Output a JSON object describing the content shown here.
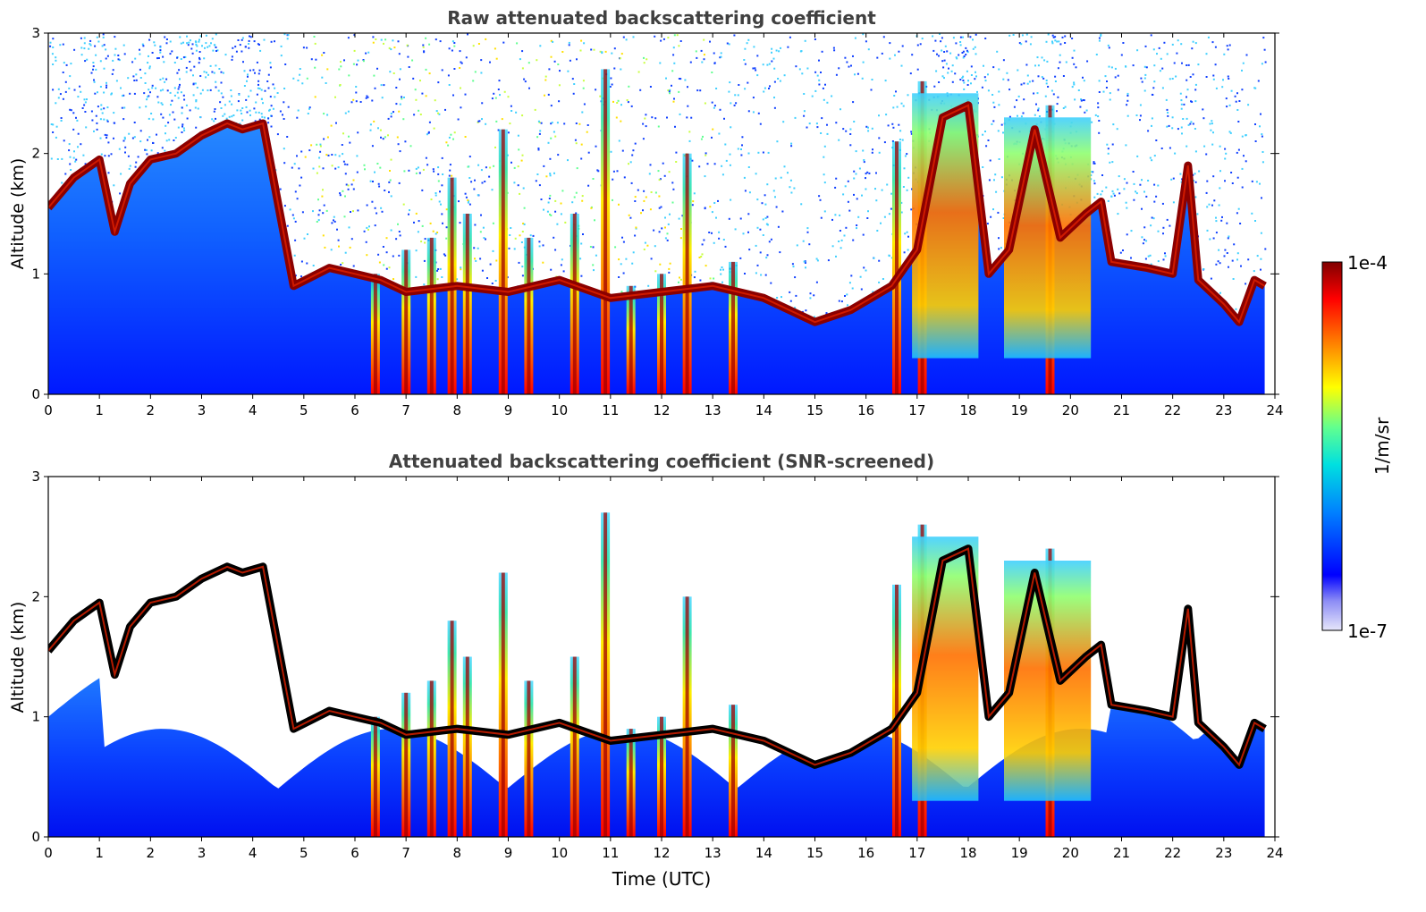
{
  "chart_data": [
    {
      "type": "heatmap",
      "title": "Raw attenuated backscattering coefficient",
      "xlabel": "",
      "ylabel": "Altitude (km)",
      "xlim": [
        0,
        24
      ],
      "ylim": [
        0,
        3
      ],
      "x_ticks": [
        "0",
        "1",
        "2",
        "3",
        "4",
        "5",
        "6",
        "7",
        "8",
        "9",
        "10",
        "11",
        "12",
        "13",
        "14",
        "15",
        "16",
        "17",
        "18",
        "19",
        "20",
        "21",
        "22",
        "23",
        "24"
      ],
      "y_ticks": [
        "0",
        "1",
        "2",
        "3"
      ],
      "grid": false,
      "data_coverage_hours": [
        0,
        23.8
      ],
      "noise": "speckle above aerosol layer; denser 5-13 UTC",
      "boundary_layer": [
        {
          "t": 0.0,
          "h": 1.55
        },
        {
          "t": 0.5,
          "h": 1.8
        },
        {
          "t": 1.0,
          "h": 1.95
        },
        {
          "t": 1.3,
          "h": 1.35
        },
        {
          "t": 1.6,
          "h": 1.75
        },
        {
          "t": 2.0,
          "h": 1.95
        },
        {
          "t": 2.5,
          "h": 2.0
        },
        {
          "t": 3.0,
          "h": 2.15
        },
        {
          "t": 3.5,
          "h": 2.25
        },
        {
          "t": 3.8,
          "h": 2.2
        },
        {
          "t": 4.2,
          "h": 2.25
        },
        {
          "t": 4.8,
          "h": 0.9
        },
        {
          "t": 5.5,
          "h": 1.05
        },
        {
          "t": 6.0,
          "h": 1.0
        },
        {
          "t": 6.5,
          "h": 0.95
        },
        {
          "t": 7.0,
          "h": 0.85
        },
        {
          "t": 8.0,
          "h": 0.9
        },
        {
          "t": 9.0,
          "h": 0.85
        },
        {
          "t": 10.0,
          "h": 0.95
        },
        {
          "t": 11.0,
          "h": 0.8
        },
        {
          "t": 12.0,
          "h": 0.85
        },
        {
          "t": 13.0,
          "h": 0.9
        },
        {
          "t": 14.0,
          "h": 0.8
        },
        {
          "t": 15.0,
          "h": 0.6
        },
        {
          "t": 15.7,
          "h": 0.7
        },
        {
          "t": 16.5,
          "h": 0.9
        },
        {
          "t": 17.0,
          "h": 1.2
        },
        {
          "t": 17.5,
          "h": 2.3
        },
        {
          "t": 18.0,
          "h": 2.4
        },
        {
          "t": 18.4,
          "h": 1.0
        },
        {
          "t": 18.8,
          "h": 1.2
        },
        {
          "t": 19.3,
          "h": 2.2
        },
        {
          "t": 19.8,
          "h": 1.3
        },
        {
          "t": 20.3,
          "h": 1.5
        },
        {
          "t": 20.6,
          "h": 1.6
        },
        {
          "t": 20.8,
          "h": 1.1
        },
        {
          "t": 21.5,
          "h": 1.05
        },
        {
          "t": 22.0,
          "h": 1.0
        },
        {
          "t": 22.3,
          "h": 1.9
        },
        {
          "t": 22.5,
          "h": 0.95
        },
        {
          "t": 23.0,
          "h": 0.75
        },
        {
          "t": 23.3,
          "h": 0.6
        },
        {
          "t": 23.6,
          "h": 0.95
        },
        {
          "t": 23.8,
          "h": 0.9
        }
      ],
      "cloud_columns": [
        {
          "t": 6.4,
          "top": 1.0
        },
        {
          "t": 7.0,
          "top": 1.2
        },
        {
          "t": 7.5,
          "top": 1.3
        },
        {
          "t": 7.9,
          "top": 1.8
        },
        {
          "t": 8.2,
          "top": 1.5
        },
        {
          "t": 8.9,
          "top": 2.2
        },
        {
          "t": 9.4,
          "top": 1.3
        },
        {
          "t": 10.3,
          "top": 1.5
        },
        {
          "t": 10.9,
          "top": 2.7
        },
        {
          "t": 11.4,
          "top": 0.9
        },
        {
          "t": 12.0,
          "top": 1.0
        },
        {
          "t": 12.5,
          "top": 2.0
        },
        {
          "t": 13.4,
          "top": 1.1
        },
        {
          "t": 16.6,
          "top": 2.1
        },
        {
          "t": 17.1,
          "top": 2.6
        },
        {
          "t": 19.6,
          "top": 2.4
        }
      ]
    },
    {
      "type": "heatmap",
      "title": "Attenuated backscattering coefficient (SNR-screened)",
      "xlabel": "Time (UTC)",
      "ylabel": "Altitude (km)",
      "xlim": [
        0,
        24
      ],
      "ylim": [
        0,
        3
      ],
      "x_ticks": [
        "0",
        "1",
        "2",
        "3",
        "4",
        "5",
        "6",
        "7",
        "8",
        "9",
        "10",
        "11",
        "12",
        "13",
        "14",
        "15",
        "16",
        "17",
        "18",
        "19",
        "20",
        "21",
        "22",
        "23",
        "24"
      ],
      "y_ticks": [
        "0",
        "1",
        "2",
        "3"
      ],
      "grid": false,
      "masked": "low-SNR pixels removed (white); saturated layer tops shown black"
    }
  ],
  "colorbar": {
    "max_label": "1e-4",
    "min_label": "1e-7",
    "unit_label": "1/m/sr",
    "colormap": [
      "#e6e6fa",
      "#0000ff",
      "#0080ff",
      "#00e0e0",
      "#60ff90",
      "#ffff00",
      "#ff8000",
      "#ff0000",
      "#800000"
    ]
  }
}
